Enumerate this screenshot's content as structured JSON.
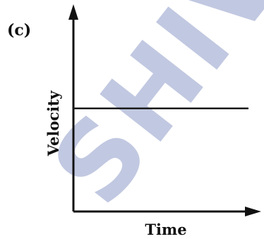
{
  "figure": {
    "part_label": "(c)",
    "watermark_text": "SHIV",
    "watermark_color": "#b6bedc"
  },
  "chart_data": {
    "type": "line",
    "title": "",
    "xlabel": "Time",
    "ylabel": "Velocity",
    "x_ticks": [],
    "y_ticks": [],
    "grid": false,
    "legend": "none",
    "xlim": [
      0,
      1
    ],
    "ylim": [
      0,
      1
    ],
    "series": [
      {
        "x": [
          0,
          1
        ],
        "y": [
          0.53,
          0.53
        ],
        "style": "solid",
        "color": "#1a1a1a"
      }
    ]
  }
}
